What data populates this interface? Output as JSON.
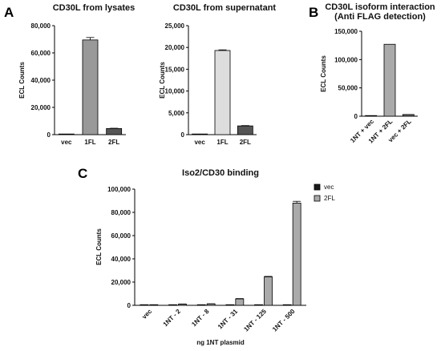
{
  "panel_letters": [
    "A",
    "B",
    "C"
  ],
  "chart_data": [
    {
      "type": "bar",
      "title": "CD30L from lysates",
      "ylabel": "ECL Counts",
      "xlabel": "",
      "ylim": [
        0,
        80000
      ],
      "yticks": [
        0,
        20000,
        40000,
        60000,
        80000
      ],
      "ytick_labels": [
        "0",
        "20,000",
        "40,000",
        "60,000",
        "80,000"
      ],
      "categories": [
        "vec",
        "1FL",
        "2FL"
      ],
      "values": [
        200,
        69500,
        4500
      ],
      "errors": [
        100,
        1800,
        200
      ],
      "colors": [
        "#222222",
        "#999999",
        "#555555"
      ],
      "tick_rotation": 0
    },
    {
      "type": "bar",
      "title": "CD30L from supernatant",
      "ylabel": "ECL Counts",
      "xlabel": "",
      "ylim": [
        0,
        25000
      ],
      "yticks": [
        0,
        5000,
        10000,
        15000,
        20000,
        25000
      ],
      "ytick_labels": [
        "0",
        "5,000",
        "10,000",
        "15,000",
        "20,000",
        "25,000"
      ],
      "categories": [
        "vec",
        "1FL",
        "2FL"
      ],
      "values": [
        50,
        19300,
        2000
      ],
      "errors": [
        20,
        150,
        80
      ],
      "colors": [
        "#222222",
        "#dddddd",
        "#555555"
      ],
      "tick_rotation": 0
    },
    {
      "type": "bar",
      "title": "CD30L isoform interaction\n(Anti FLAG detection)",
      "ylabel": "ECL Counts",
      "xlabel": "",
      "ylim": [
        0,
        150000
      ],
      "yticks": [
        0,
        50000,
        100000,
        150000
      ],
      "ytick_labels": [
        "0",
        "50,000",
        "100,000",
        "150,000"
      ],
      "categories": [
        "1NT + vec",
        "1NT + 2FL",
        "vec + 2FL"
      ],
      "values": [
        500,
        127000,
        3000
      ],
      "errors": [
        0,
        0,
        0
      ],
      "colors": [
        "#222222",
        "#aaaaaa",
        "#666666"
      ],
      "tick_rotation": -45
    },
    {
      "type": "bar",
      "title": "Iso2/CD30 binding",
      "ylabel": "ECL Counts",
      "xlabel": "ng 1NT plasmid",
      "ylim": [
        0,
        100000
      ],
      "yticks": [
        0,
        20000,
        40000,
        60000,
        80000,
        100000
      ],
      "ytick_labels": [
        "0",
        "20,000",
        "40,000",
        "60,000",
        "80,000",
        "100,000"
      ],
      "categories": [
        "vec",
        "1NT - 2",
        "1NT - 8",
        "1NT - 31",
        "1NT - 125",
        "1NT - 500"
      ],
      "series": [
        {
          "name": "vec",
          "color": "#1a1a1a",
          "values": [
            100,
            100,
            100,
            100,
            100,
            100
          ]
        },
        {
          "name": "2FL",
          "color": "#aaaaaa",
          "values": [
            300,
            1000,
            1200,
            5500,
            24500,
            88000
          ],
          "errors": [
            100,
            150,
            150,
            300,
            400,
            1500
          ]
        }
      ],
      "legend_position": "top-right",
      "tick_rotation": -45
    }
  ]
}
